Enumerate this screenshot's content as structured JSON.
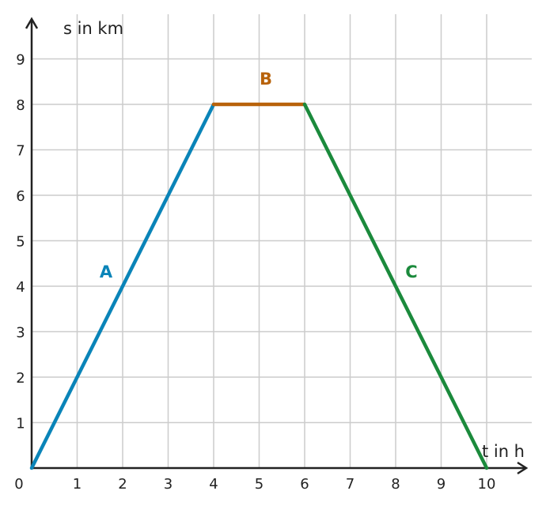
{
  "chart_data": {
    "type": "line",
    "xlabel": "t in h",
    "ylabel": "s in km",
    "xlim": [
      0,
      10
    ],
    "ylim": [
      0,
      9
    ],
    "origin_label": "0",
    "x_ticks": [
      "1",
      "2",
      "3",
      "4",
      "5",
      "6",
      "7",
      "8",
      "9",
      "10"
    ],
    "y_ticks": [
      "1",
      "2",
      "3",
      "4",
      "5",
      "6",
      "7",
      "8",
      "9"
    ],
    "grid": true,
    "series": [
      {
        "name": "A",
        "color": "#0a84b8",
        "x": [
          0,
          4
        ],
        "y": [
          0,
          8
        ]
      },
      {
        "name": "B",
        "color": "#b8620a",
        "x": [
          4,
          6
        ],
        "y": [
          8,
          8
        ]
      },
      {
        "name": "C",
        "color": "#1b8a3c",
        "x": [
          6,
          10
        ],
        "y": [
          8,
          0
        ]
      }
    ]
  }
}
